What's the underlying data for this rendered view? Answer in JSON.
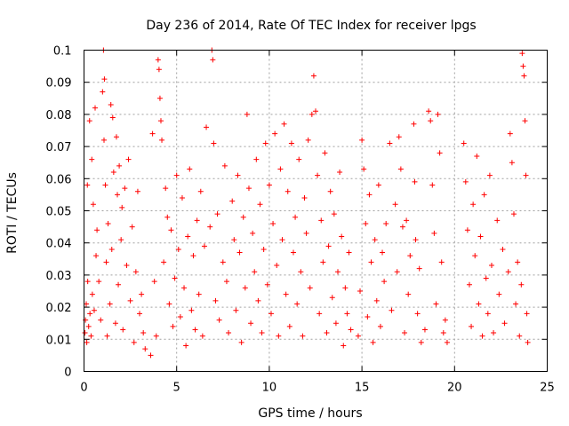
{
  "chart_data": {
    "type": "scatter",
    "title": "Day 236 of 2014, Rate Of TEC Index for receiver lpgs",
    "xlabel": "GPS time / hours",
    "ylabel": "ROTI / TECUs",
    "xlim": [
      0,
      25
    ],
    "ylim": [
      0,
      0.1
    ],
    "x_ticks": [
      "0",
      "5",
      "10",
      "15",
      "20",
      "25"
    ],
    "y_ticks": [
      "0",
      "0.01",
      "0.02",
      "0.03",
      "0.04",
      "0.05",
      "0.06",
      "0.07",
      "0.08",
      "0.09",
      "0.1"
    ],
    "grid": true,
    "marker": "+",
    "color": "#ff0000",
    "series": [
      {
        "name": "ROTI",
        "points": [
          [
            0.05,
            0.012
          ],
          [
            0.08,
            0.016
          ],
          [
            0.12,
            0.021
          ],
          [
            0.15,
            0.009
          ],
          [
            0.18,
            0.058
          ],
          [
            0.2,
            0.028
          ],
          [
            0.25,
            0.014
          ],
          [
            0.3,
            0.078
          ],
          [
            0.32,
            0.018
          ],
          [
            0.38,
            0.011
          ],
          [
            0.42,
            0.066
          ],
          [
            0.45,
            0.024
          ],
          [
            0.5,
            0.052
          ],
          [
            0.55,
            0.019
          ],
          [
            0.6,
            0.082
          ],
          [
            0.65,
            0.036
          ],
          [
            0.7,
            0.044
          ],
          [
            0.8,
            0.028
          ],
          [
            0.9,
            0.016
          ],
          [
            1.0,
            0.087
          ],
          [
            1.05,
            0.1
          ],
          [
            1.08,
            0.072
          ],
          [
            1.1,
            0.091
          ],
          [
            1.15,
            0.058
          ],
          [
            1.2,
            0.034
          ],
          [
            1.25,
            0.011
          ],
          [
            1.3,
            0.046
          ],
          [
            1.4,
            0.021
          ],
          [
            1.45,
            0.083
          ],
          [
            1.5,
            0.038
          ],
          [
            1.55,
            0.079
          ],
          [
            1.6,
            0.062
          ],
          [
            1.7,
            0.015
          ],
          [
            1.75,
            0.073
          ],
          [
            1.8,
            0.055
          ],
          [
            1.85,
            0.027
          ],
          [
            1.9,
            0.064
          ],
          [
            2.0,
            0.041
          ],
          [
            2.05,
            0.051
          ],
          [
            2.1,
            0.013
          ],
          [
            2.2,
            0.057
          ],
          [
            2.3,
            0.033
          ],
          [
            2.4,
            0.066
          ],
          [
            2.5,
            0.022
          ],
          [
            2.6,
            0.045
          ],
          [
            2.7,
            0.009
          ],
          [
            2.8,
            0.031
          ],
          [
            2.9,
            0.056
          ],
          [
            3.0,
            0.018
          ],
          [
            3.1,
            0.024
          ],
          [
            3.2,
            0.012
          ],
          [
            3.3,
            0.007
          ],
          [
            3.6,
            0.005
          ],
          [
            3.7,
            0.074
          ],
          [
            3.8,
            0.028
          ],
          [
            3.9,
            0.011
          ],
          [
            4.0,
            0.097
          ],
          [
            4.05,
            0.094
          ],
          [
            4.1,
            0.085
          ],
          [
            4.15,
            0.078
          ],
          [
            4.2,
            0.072
          ],
          [
            4.3,
            0.034
          ],
          [
            4.4,
            0.057
          ],
          [
            4.5,
            0.048
          ],
          [
            4.6,
            0.021
          ],
          [
            4.7,
            0.044
          ],
          [
            4.8,
            0.014
          ],
          [
            4.9,
            0.029
          ],
          [
            5.0,
            0.061
          ],
          [
            5.1,
            0.038
          ],
          [
            5.2,
            0.017
          ],
          [
            5.3,
            0.054
          ],
          [
            5.4,
            0.026
          ],
          [
            5.5,
            0.008
          ],
          [
            5.6,
            0.042
          ],
          [
            5.7,
            0.063
          ],
          [
            5.8,
            0.019
          ],
          [
            5.9,
            0.036
          ],
          [
            6.0,
            0.013
          ],
          [
            6.1,
            0.047
          ],
          [
            6.2,
            0.024
          ],
          [
            6.3,
            0.056
          ],
          [
            6.4,
            0.011
          ],
          [
            6.5,
            0.039
          ],
          [
            6.6,
            0.076
          ],
          [
            6.8,
            0.045
          ],
          [
            6.9,
            0.1
          ],
          [
            6.95,
            0.097
          ],
          [
            7.0,
            0.071
          ],
          [
            7.1,
            0.022
          ],
          [
            7.2,
            0.049
          ],
          [
            7.3,
            0.016
          ],
          [
            7.5,
            0.034
          ],
          [
            7.6,
            0.064
          ],
          [
            7.7,
            0.028
          ],
          [
            7.8,
            0.012
          ],
          [
            8.0,
            0.053
          ],
          [
            8.1,
            0.041
          ],
          [
            8.2,
            0.019
          ],
          [
            8.3,
            0.061
          ],
          [
            8.4,
            0.037
          ],
          [
            8.5,
            0.009
          ],
          [
            8.6,
            0.048
          ],
          [
            8.7,
            0.026
          ],
          [
            8.8,
            0.08
          ],
          [
            8.9,
            0.057
          ],
          [
            9.0,
            0.015
          ],
          [
            9.1,
            0.043
          ],
          [
            9.2,
            0.031
          ],
          [
            9.3,
            0.066
          ],
          [
            9.4,
            0.022
          ],
          [
            9.5,
            0.052
          ],
          [
            9.6,
            0.012
          ],
          [
            9.7,
            0.038
          ],
          [
            9.8,
            0.071
          ],
          [
            9.9,
            0.027
          ],
          [
            10.0,
            0.058
          ],
          [
            10.1,
            0.018
          ],
          [
            10.2,
            0.046
          ],
          [
            10.3,
            0.074
          ],
          [
            10.4,
            0.033
          ],
          [
            10.5,
            0.011
          ],
          [
            10.6,
            0.063
          ],
          [
            10.7,
            0.041
          ],
          [
            10.8,
            0.077
          ],
          [
            10.9,
            0.024
          ],
          [
            11.0,
            0.056
          ],
          [
            11.1,
            0.014
          ],
          [
            11.2,
            0.071
          ],
          [
            11.3,
            0.037
          ],
          [
            11.4,
            0.048
          ],
          [
            11.5,
            0.021
          ],
          [
            11.6,
            0.066
          ],
          [
            11.7,
            0.031
          ],
          [
            11.8,
            0.011
          ],
          [
            11.9,
            0.054
          ],
          [
            12.0,
            0.043
          ],
          [
            12.1,
            0.072
          ],
          [
            12.2,
            0.026
          ],
          [
            12.3,
            0.08
          ],
          [
            12.4,
            0.092
          ],
          [
            12.5,
            0.081
          ],
          [
            12.6,
            0.061
          ],
          [
            12.7,
            0.018
          ],
          [
            12.8,
            0.047
          ],
          [
            12.9,
            0.034
          ],
          [
            13.0,
            0.068
          ],
          [
            13.1,
            0.012
          ],
          [
            13.2,
            0.039
          ],
          [
            13.3,
            0.056
          ],
          [
            13.4,
            0.023
          ],
          [
            13.5,
            0.049
          ],
          [
            13.6,
            0.015
          ],
          [
            13.7,
            0.031
          ],
          [
            13.8,
            0.062
          ],
          [
            13.9,
            0.042
          ],
          [
            14.0,
            0.008
          ],
          [
            14.1,
            0.026
          ],
          [
            14.2,
            0.018
          ],
          [
            14.3,
            0.037
          ],
          [
            14.4,
            0.013
          ],
          [
            14.8,
            0.011
          ],
          [
            14.9,
            0.025
          ],
          [
            15.0,
            0.072
          ],
          [
            15.1,
            0.063
          ],
          [
            15.2,
            0.046
          ],
          [
            15.3,
            0.017
          ],
          [
            15.4,
            0.055
          ],
          [
            15.5,
            0.034
          ],
          [
            15.6,
            0.009
          ],
          [
            15.7,
            0.041
          ],
          [
            15.8,
            0.022
          ],
          [
            15.9,
            0.058
          ],
          [
            16.0,
            0.014
          ],
          [
            16.1,
            0.037
          ],
          [
            16.2,
            0.028
          ],
          [
            16.3,
            0.046
          ],
          [
            16.5,
            0.071
          ],
          [
            16.6,
            0.019
          ],
          [
            16.8,
            0.052
          ],
          [
            16.9,
            0.031
          ],
          [
            17.0,
            0.073
          ],
          [
            17.1,
            0.063
          ],
          [
            17.2,
            0.045
          ],
          [
            17.3,
            0.012
          ],
          [
            17.4,
            0.047
          ],
          [
            17.5,
            0.024
          ],
          [
            17.6,
            0.036
          ],
          [
            17.8,
            0.077
          ],
          [
            17.85,
            0.059
          ],
          [
            17.9,
            0.041
          ],
          [
            18.0,
            0.018
          ],
          [
            18.1,
            0.032
          ],
          [
            18.2,
            0.009
          ],
          [
            18.4,
            0.013
          ],
          [
            18.6,
            0.081
          ],
          [
            18.7,
            0.078
          ],
          [
            18.8,
            0.058
          ],
          [
            18.9,
            0.043
          ],
          [
            19.0,
            0.021
          ],
          [
            19.1,
            0.08
          ],
          [
            19.2,
            0.068
          ],
          [
            19.3,
            0.034
          ],
          [
            19.4,
            0.012
          ],
          [
            19.5,
            0.016
          ],
          [
            19.6,
            0.009
          ],
          [
            20.5,
            0.071
          ],
          [
            20.6,
            0.059
          ],
          [
            20.7,
            0.044
          ],
          [
            20.8,
            0.027
          ],
          [
            20.9,
            0.014
          ],
          [
            21.0,
            0.052
          ],
          [
            21.1,
            0.036
          ],
          [
            21.2,
            0.067
          ],
          [
            21.3,
            0.021
          ],
          [
            21.4,
            0.042
          ],
          [
            21.5,
            0.011
          ],
          [
            21.6,
            0.055
          ],
          [
            21.7,
            0.029
          ],
          [
            21.8,
            0.018
          ],
          [
            21.9,
            0.061
          ],
          [
            22.0,
            0.033
          ],
          [
            22.1,
            0.012
          ],
          [
            22.3,
            0.047
          ],
          [
            22.4,
            0.024
          ],
          [
            22.6,
            0.038
          ],
          [
            22.7,
            0.015
          ],
          [
            22.9,
            0.031
          ],
          [
            23.0,
            0.074
          ],
          [
            23.1,
            0.065
          ],
          [
            23.2,
            0.049
          ],
          [
            23.3,
            0.021
          ],
          [
            23.4,
            0.034
          ],
          [
            23.5,
            0.011
          ],
          [
            23.6,
            0.027
          ],
          [
            23.65,
            0.099
          ],
          [
            23.7,
            0.095
          ],
          [
            23.75,
            0.092
          ],
          [
            23.8,
            0.078
          ],
          [
            23.85,
            0.061
          ],
          [
            23.9,
            0.018
          ],
          [
            23.95,
            0.009
          ]
        ]
      }
    ]
  }
}
